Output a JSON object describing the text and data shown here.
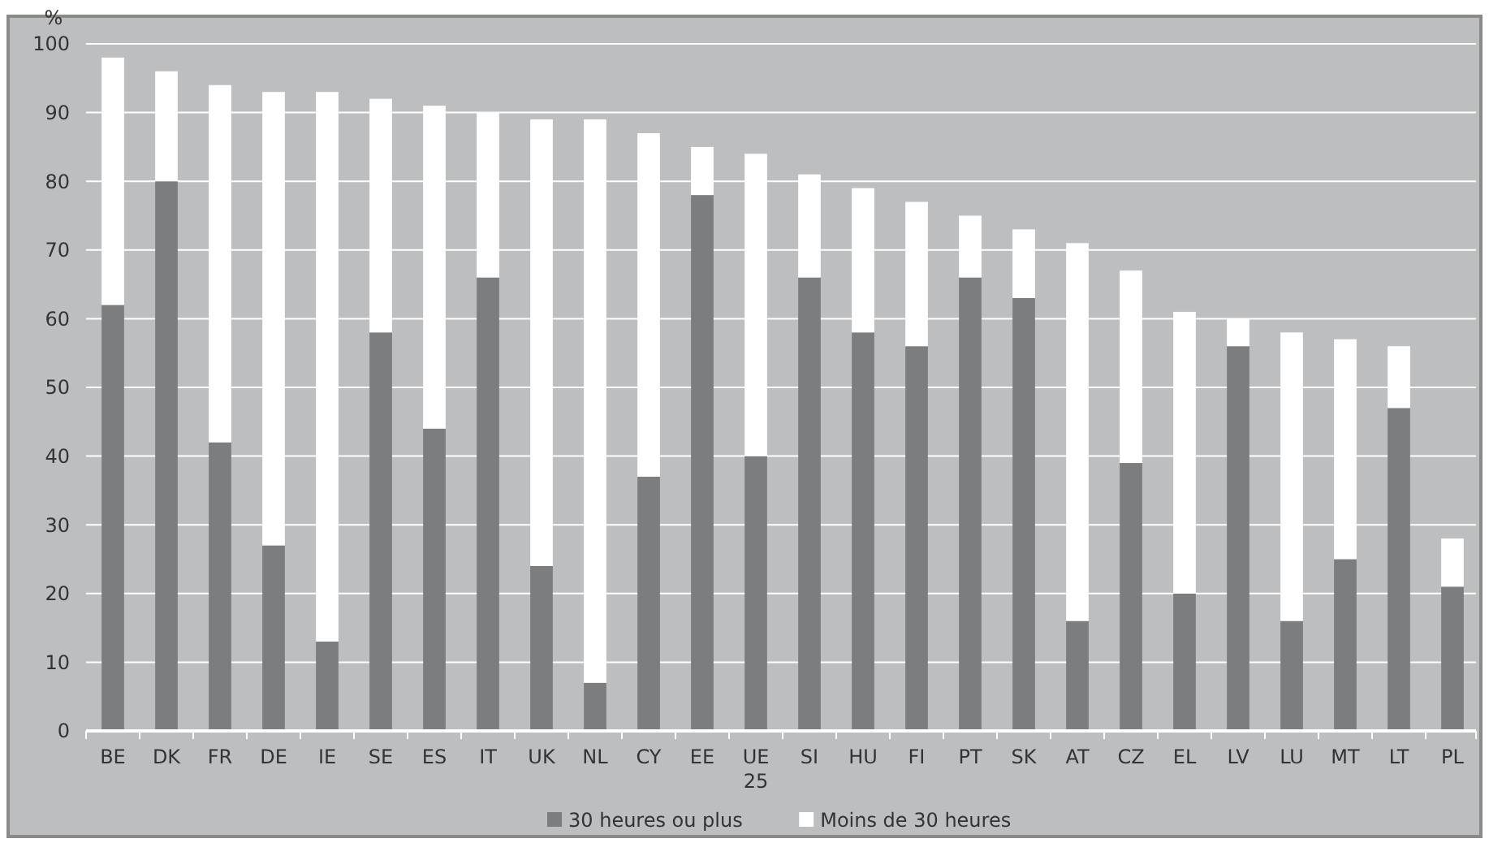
{
  "chart_data": {
    "type": "bar",
    "stacked": true,
    "ylabel": "%",
    "categories": [
      "BE",
      "DK",
      "FR",
      "DE",
      "IE",
      "SE",
      "ES",
      "IT",
      "UK",
      "NL",
      "CY",
      "EE",
      "UE 25",
      "SI",
      "HU",
      "FI",
      "PT",
      "SK",
      "AT",
      "CZ",
      "EL",
      "LV",
      "LU",
      "MT",
      "LT",
      "PL"
    ],
    "series": [
      {
        "name": "30 heures ou plus",
        "color": "#7b7d7f",
        "values": [
          62,
          80,
          42,
          27,
          13,
          58,
          44,
          66,
          24,
          7,
          37,
          78,
          40,
          66,
          58,
          56,
          66,
          63,
          16,
          39,
          20,
          56,
          16,
          25,
          47,
          21
        ]
      },
      {
        "name": "Moins de 30 heures",
        "color": "#ffffff",
        "values": [
          36,
          16,
          52,
          66,
          80,
          34,
          47,
          24,
          65,
          82,
          50,
          7,
          44,
          15,
          21,
          21,
          9,
          10,
          55,
          28,
          41,
          4,
          42,
          32,
          9,
          7
        ]
      }
    ],
    "ylim": [
      0,
      100
    ],
    "yticks": [
      0,
      10,
      20,
      30,
      40,
      50,
      60,
      70,
      80,
      90,
      100
    ],
    "grid": "y",
    "legend": "bottom"
  }
}
